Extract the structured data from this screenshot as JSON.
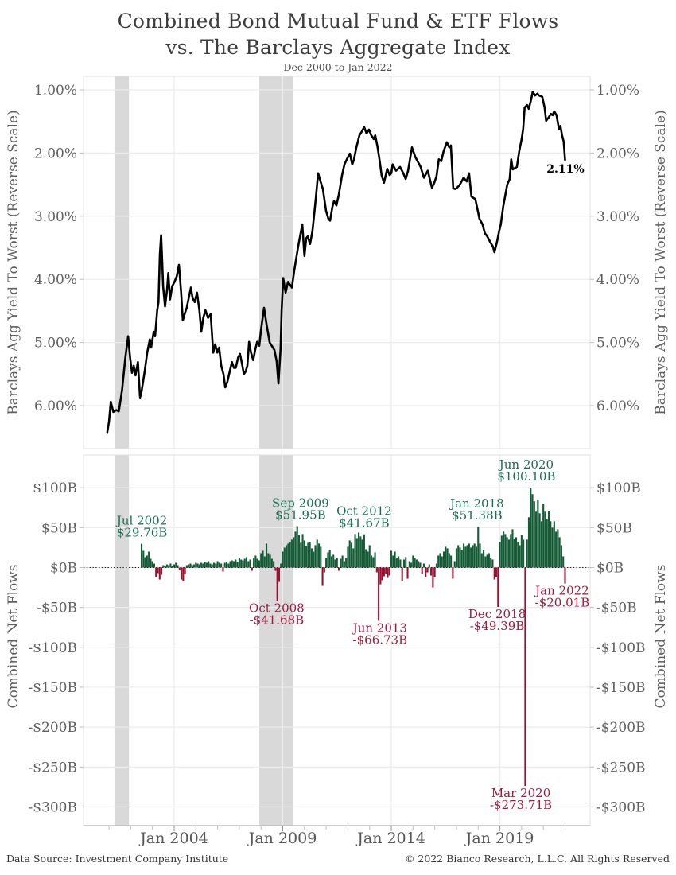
{
  "header": {
    "title_line1": "Combined Bond Mutual Fund & ETF Flows",
    "title_line2": "vs. The Barclays Aggregate Index",
    "subtitle": "Dec 2000 to Jan 2022"
  },
  "footer": {
    "source": "Data Source: Investment Company Institute",
    "copyright": "© 2022 Bianco Research, L.L.C. All Rights Reserved"
  },
  "colors": {
    "bar_positive": "#155b36",
    "bar_negative": "#9a1030",
    "annotation_positive": "#1b6d52",
    "annotation_negative": "#a0183a",
    "line": "#000000",
    "recession_band": "#d9d9d9",
    "gridline": "#ececec",
    "panel_border": "#e0e0e0",
    "axis_line": "#b5b5b5",
    "tick": "#c0c0c0",
    "axis_text": "#5f5f5f"
  },
  "chart_data": {
    "type": "line+bar",
    "title": "Combined Bond Mutual Fund & ETF Flows vs. The Barclays Aggregate Index",
    "subtitle": "Dec 2000 to Jan 2022",
    "x_axis": {
      "start_year": 2001,
      "end_year": 2022,
      "labeled_ticks": [
        {
          "year": 2004,
          "label": "Jan 2004"
        },
        {
          "year": 2009,
          "label": "Jan 2009"
        },
        {
          "year": 2014,
          "label": "Jan 2014"
        },
        {
          "year": 2019,
          "label": "Jan 2019"
        }
      ]
    },
    "recessions": [
      {
        "start": 2001.25,
        "end": 2001.92
      },
      {
        "start": 2007.92,
        "end": 2009.46
      }
    ],
    "top_panel": {
      "ylabel": "Barclays Agg Yield To Worst (Reverse Scale)",
      "reverse_scale": true,
      "yticks": [
        {
          "v": 1,
          "label": "1.00%"
        },
        {
          "v": 2,
          "label": "2.00%"
        },
        {
          "v": 3,
          "label": "3.00%"
        },
        {
          "v": 4,
          "label": "4.00%"
        },
        {
          "v": 5,
          "label": "5.00%"
        },
        {
          "v": 6,
          "label": "6.00%"
        }
      ],
      "end_label": "2.11%",
      "series_name": "Barclays Agg Yield To Worst",
      "points": [
        [
          2000.92,
          6.42
        ],
        [
          2001.0,
          6.25
        ],
        [
          2001.08,
          5.94
        ],
        [
          2001.2,
          6.1
        ],
        [
          2001.33,
          6.07
        ],
        [
          2001.45,
          6.09
        ],
        [
          2001.6,
          5.75
        ],
        [
          2001.75,
          5.24
        ],
        [
          2001.88,
          4.9
        ],
        [
          2001.97,
          5.24
        ],
        [
          2002.06,
          5.48
        ],
        [
          2002.14,
          5.37
        ],
        [
          2002.22,
          5.52
        ],
        [
          2002.33,
          5.31
        ],
        [
          2002.43,
          5.87
        ],
        [
          2002.49,
          5.79
        ],
        [
          2002.64,
          5.46
        ],
        [
          2002.76,
          5.16
        ],
        [
          2002.88,
          4.95
        ],
        [
          2002.94,
          5.08
        ],
        [
          2003.06,
          4.83
        ],
        [
          2003.12,
          4.9
        ],
        [
          2003.22,
          4.49
        ],
        [
          2003.28,
          4.36
        ],
        [
          2003.34,
          3.61
        ],
        [
          2003.4,
          3.3
        ],
        [
          2003.45,
          3.73
        ],
        [
          2003.49,
          4.11
        ],
        [
          2003.58,
          4.43
        ],
        [
          2003.67,
          4.17
        ],
        [
          2003.73,
          3.9
        ],
        [
          2003.81,
          4.32
        ],
        [
          2003.91,
          4.11
        ],
        [
          2004.0,
          4.05
        ],
        [
          2004.12,
          3.95
        ],
        [
          2004.22,
          3.77
        ],
        [
          2004.32,
          4.2
        ],
        [
          2004.4,
          4.65
        ],
        [
          2004.5,
          4.53
        ],
        [
          2004.58,
          4.45
        ],
        [
          2004.68,
          4.28
        ],
        [
          2004.77,
          4.13
        ],
        [
          2004.85,
          4.3
        ],
        [
          2004.95,
          4.36
        ],
        [
          2005.05,
          4.21
        ],
        [
          2005.16,
          4.49
        ],
        [
          2005.25,
          4.83
        ],
        [
          2005.34,
          4.61
        ],
        [
          2005.44,
          4.49
        ],
        [
          2005.56,
          4.61
        ],
        [
          2005.68,
          4.55
        ],
        [
          2005.8,
          5.16
        ],
        [
          2005.89,
          5.03
        ],
        [
          2005.99,
          5.16
        ],
        [
          2006.07,
          5.08
        ],
        [
          2006.17,
          5.37
        ],
        [
          2006.27,
          5.5
        ],
        [
          2006.35,
          5.71
        ],
        [
          2006.45,
          5.62
        ],
        [
          2006.53,
          5.5
        ],
        [
          2006.66,
          5.31
        ],
        [
          2006.75,
          5.4
        ],
        [
          2006.84,
          5.4
        ],
        [
          2006.94,
          5.24
        ],
        [
          2007.03,
          5.18
        ],
        [
          2007.12,
          5.33
        ],
        [
          2007.21,
          5.5
        ],
        [
          2007.29,
          5.46
        ],
        [
          2007.37,
          5.37
        ],
        [
          2007.45,
          4.99
        ],
        [
          2007.54,
          5.16
        ],
        [
          2007.64,
          5.28
        ],
        [
          2007.73,
          5.12
        ],
        [
          2007.82,
          4.99
        ],
        [
          2007.92,
          5.05
        ],
        [
          2008.0,
          4.8
        ],
        [
          2008.14,
          4.45
        ],
        [
          2008.25,
          4.7
        ],
        [
          2008.4,
          5.0
        ],
        [
          2008.62,
          5.12
        ],
        [
          2008.72,
          5.3
        ],
        [
          2008.8,
          5.65
        ],
        [
          2008.9,
          5.1
        ],
        [
          2008.95,
          4.5
        ],
        [
          2009.02,
          3.98
        ],
        [
          2009.13,
          4.21
        ],
        [
          2009.24,
          4.04
        ],
        [
          2009.42,
          4.13
        ],
        [
          2009.53,
          3.86
        ],
        [
          2009.71,
          3.48
        ],
        [
          2009.9,
          3.13
        ],
        [
          2010.0,
          3.63
        ],
        [
          2010.08,
          3.35
        ],
        [
          2010.15,
          3.32
        ],
        [
          2010.26,
          3.44
        ],
        [
          2010.37,
          3.23
        ],
        [
          2010.52,
          2.73
        ],
        [
          2010.63,
          2.32
        ],
        [
          2010.74,
          2.45
        ],
        [
          2010.85,
          2.57
        ],
        [
          2010.99,
          2.91
        ],
        [
          2011.1,
          3.04
        ],
        [
          2011.18,
          3.07
        ],
        [
          2011.29,
          2.85
        ],
        [
          2011.36,
          2.76
        ],
        [
          2011.47,
          2.83
        ],
        [
          2011.58,
          2.66
        ],
        [
          2011.73,
          2.35
        ],
        [
          2011.84,
          2.18
        ],
        [
          2011.95,
          2.1
        ],
        [
          2012.09,
          2.01
        ],
        [
          2012.2,
          2.18
        ],
        [
          2012.28,
          2.1
        ],
        [
          2012.39,
          1.91
        ],
        [
          2012.53,
          1.72
        ],
        [
          2012.64,
          1.66
        ],
        [
          2012.75,
          1.59
        ],
        [
          2012.86,
          1.69
        ],
        [
          2012.97,
          1.63
        ],
        [
          2013.08,
          1.72
        ],
        [
          2013.19,
          1.78
        ],
        [
          2013.26,
          1.72
        ],
        [
          2013.37,
          1.91
        ],
        [
          2013.48,
          2.16
        ],
        [
          2013.55,
          2.35
        ],
        [
          2013.66,
          2.47
        ],
        [
          2013.81,
          2.25
        ],
        [
          2013.92,
          2.35
        ],
        [
          2014.0,
          2.32
        ],
        [
          2014.06,
          2.18
        ],
        [
          2014.22,
          2.28
        ],
        [
          2014.4,
          2.22
        ],
        [
          2014.55,
          2.32
        ],
        [
          2014.66,
          2.41
        ],
        [
          2014.77,
          2.28
        ],
        [
          2014.95,
          1.91
        ],
        [
          2015.1,
          2.06
        ],
        [
          2015.21,
          2.13
        ],
        [
          2015.35,
          2.22
        ],
        [
          2015.5,
          2.39
        ],
        [
          2015.68,
          2.28
        ],
        [
          2015.87,
          2.55
        ],
        [
          2015.98,
          2.47
        ],
        [
          2016.08,
          2.37
        ],
        [
          2016.19,
          2.1
        ],
        [
          2016.3,
          2.13
        ],
        [
          2016.41,
          1.97
        ],
        [
          2016.56,
          1.83
        ],
        [
          2016.67,
          1.91
        ],
        [
          2016.74,
          1.88
        ],
        [
          2016.85,
          2.56
        ],
        [
          2016.96,
          2.57
        ],
        [
          2017.14,
          2.51
        ],
        [
          2017.33,
          2.39
        ],
        [
          2017.47,
          2.45
        ],
        [
          2017.58,
          2.32
        ],
        [
          2017.69,
          2.69
        ],
        [
          2017.87,
          2.73
        ],
        [
          2018.06,
          3.04
        ],
        [
          2018.2,
          3.13
        ],
        [
          2018.31,
          3.27
        ],
        [
          2018.42,
          3.32
        ],
        [
          2018.57,
          3.42
        ],
        [
          2018.68,
          3.48
        ],
        [
          2018.75,
          3.57
        ],
        [
          2018.86,
          3.42
        ],
        [
          2018.97,
          3.23
        ],
        [
          2019.04,
          3.13
        ],
        [
          2019.15,
          2.85
        ],
        [
          2019.34,
          2.5
        ],
        [
          2019.45,
          2.41
        ],
        [
          2019.52,
          2.1
        ],
        [
          2019.59,
          2.26
        ],
        [
          2019.78,
          2.22
        ],
        [
          2019.89,
          1.97
        ],
        [
          2020.0,
          1.78
        ],
        [
          2020.07,
          1.62
        ],
        [
          2020.14,
          1.28
        ],
        [
          2020.25,
          1.24
        ],
        [
          2020.33,
          1.3
        ],
        [
          2020.44,
          1.15
        ],
        [
          2020.51,
          1.03
        ],
        [
          2020.62,
          1.09
        ],
        [
          2020.73,
          1.06
        ],
        [
          2020.8,
          1.09
        ],
        [
          2020.95,
          1.11
        ],
        [
          2021.06,
          1.28
        ],
        [
          2021.13,
          1.49
        ],
        [
          2021.24,
          1.44
        ],
        [
          2021.35,
          1.38
        ],
        [
          2021.43,
          1.4
        ],
        [
          2021.5,
          1.34
        ],
        [
          2021.61,
          1.4
        ],
        [
          2021.72,
          1.62
        ],
        [
          2021.79,
          1.57
        ],
        [
          2021.86,
          1.72
        ],
        [
          2021.94,
          1.82
        ],
        [
          2022.0,
          2.11
        ]
      ]
    },
    "bottom_panel": {
      "ylabel": "Combined Net Flows",
      "yticks": [
        {
          "v": 100,
          "label": "$100B"
        },
        {
          "v": 50,
          "label": "$50B"
        },
        {
          "v": 0,
          "label": "$0B"
        },
        {
          "v": -50,
          "label": "-$50B"
        },
        {
          "v": -100,
          "label": "-$100B"
        },
        {
          "v": -150,
          "label": "-$150B"
        },
        {
          "v": -200,
          "label": "-$200B"
        },
        {
          "v": -250,
          "label": "-$250B"
        },
        {
          "v": -300,
          "label": "-$300B"
        }
      ],
      "bars_start_year": 2002.5,
      "bars_start_label": "Jul 2002",
      "bars_monthly": [
        29.76,
        21,
        13,
        15,
        20,
        11,
        8,
        5,
        -12,
        -7,
        -15,
        -9,
        3,
        2,
        4,
        3,
        5,
        2,
        4,
        6,
        3,
        -3,
        -15,
        -17,
        -8,
        3,
        4,
        5,
        3,
        4,
        6,
        5,
        4,
        6,
        5,
        7,
        6,
        8,
        5,
        4,
        6,
        5,
        8,
        6,
        5,
        -5,
        6,
        7,
        5,
        8,
        9,
        8,
        10,
        7,
        12,
        10,
        9,
        11,
        13,
        8,
        10,
        -4,
        12,
        15,
        11,
        9,
        18,
        21,
        14,
        30,
        18,
        16,
        11,
        8,
        -4,
        -41.68,
        -18,
        5,
        20,
        25,
        28,
        30,
        32,
        35,
        38,
        45,
        51.95,
        41,
        31,
        42,
        34,
        27,
        31,
        32,
        24,
        20,
        28,
        35,
        30,
        26,
        -23,
        -6,
        12,
        19,
        22,
        14,
        16,
        10,
        12,
        -4,
        11,
        15,
        8,
        12,
        26,
        34,
        31,
        24,
        42,
        37,
        44,
        39,
        35,
        41.67,
        23,
        20,
        28,
        15,
        13,
        19,
        -6,
        -66.73,
        -21,
        -16,
        -11,
        -8,
        -13,
        -10,
        21,
        15,
        20,
        12,
        14,
        10,
        -17,
        10,
        13,
        -14,
        8,
        6,
        15,
        12,
        10,
        8,
        6,
        -8,
        5,
        -12,
        -6,
        4,
        -10,
        -25,
        -12,
        5,
        15,
        18,
        14,
        20,
        26,
        24,
        18,
        15,
        -14,
        8,
        24,
        28,
        25,
        22,
        30,
        26,
        28,
        30,
        25,
        28,
        30,
        26,
        51.38,
        30,
        18,
        22,
        14,
        16,
        18,
        12,
        10,
        -15,
        -12,
        -49.39,
        32,
        40,
        45,
        42,
        38,
        35,
        42,
        48,
        36,
        38,
        32,
        28,
        41,
        35,
        -273.71,
        35,
        63,
        100.1,
        92,
        83,
        70,
        85,
        68,
        58,
        80,
        70,
        61,
        71,
        58,
        50,
        58,
        45,
        48,
        38,
        28,
        14,
        -20.01
      ],
      "annotations": [
        {
          "label": "Jul 2002",
          "value_label": "$29.76B",
          "value": 29.76,
          "x_year": 2002.52,
          "side": "above",
          "sentiment": "positive"
        },
        {
          "label": "Sep 2009",
          "value_label": "$51.95B",
          "value": 51.95,
          "x_year": 2009.82,
          "side": "above",
          "sentiment": "positive"
        },
        {
          "label": "Oct 2012",
          "value_label": "$41.67B",
          "value": 41.67,
          "x_year": 2012.75,
          "side": "above",
          "sentiment": "positive"
        },
        {
          "label": "Jan 2018",
          "value_label": "$51.38B",
          "value": 51.38,
          "x_year": 2017.95,
          "side": "above",
          "sentiment": "positive"
        },
        {
          "label": "Jun 2020",
          "value_label": "$100.10B",
          "value": 100.1,
          "x_year": 2020.22,
          "side": "above",
          "sentiment": "positive"
        },
        {
          "label": "Oct 2008",
          "value_label": "-$41.68B",
          "value": -41.68,
          "x_year": 2008.72,
          "side": "below",
          "sentiment": "negative"
        },
        {
          "label": "Jun 2013",
          "value_label": "-$66.73B",
          "value": -66.73,
          "x_year": 2013.48,
          "side": "below",
          "sentiment": "negative"
        },
        {
          "label": "Dec 2018",
          "value_label": "-$49.39B",
          "value": -49.39,
          "x_year": 2018.87,
          "side": "below",
          "sentiment": "negative"
        },
        {
          "label": "Mar 2020",
          "value_label": "-$273.71B",
          "value": -273.71,
          "x_year": 2019.97,
          "side": "below",
          "sentiment": "negative"
        },
        {
          "label": "Jan 2022",
          "value_label": "-$20.01B",
          "value": -20.01,
          "x_year": 2021.87,
          "side": "below",
          "sentiment": "negative"
        }
      ]
    }
  }
}
